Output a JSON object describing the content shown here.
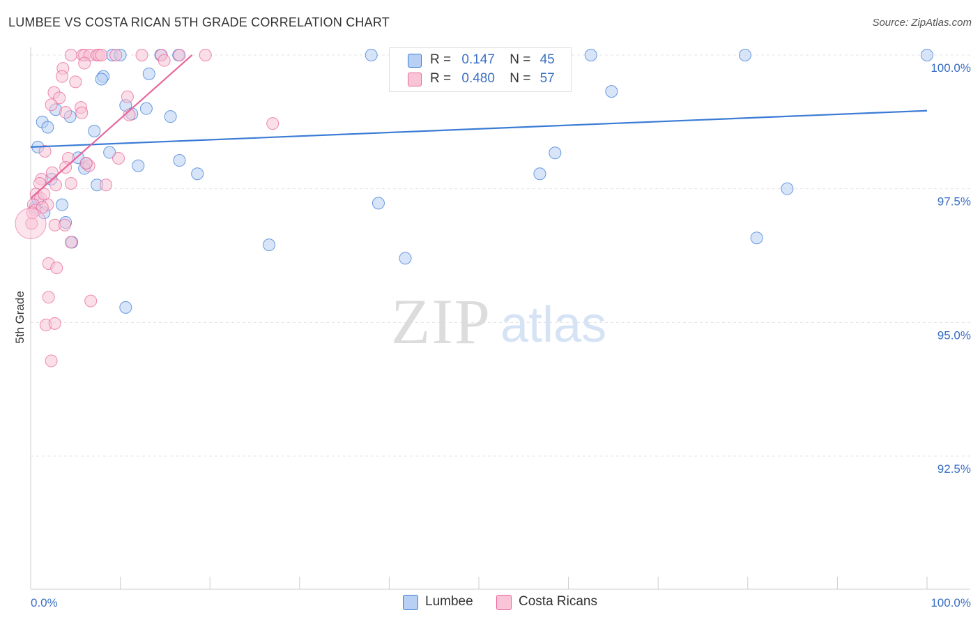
{
  "header": {
    "title": "LUMBEE VS COSTA RICAN 5TH GRADE CORRELATION CHART",
    "source": "Source: ZipAtlas.com"
  },
  "legend": {
    "row1": {
      "r_label": "R =",
      "r_value": "0.147",
      "n_label": "N =",
      "n_value": "45"
    },
    "row2": {
      "r_label": "R =",
      "r_value": "0.480",
      "n_label": "N =",
      "n_value": "57"
    }
  },
  "bottom_legend": {
    "lumbee": "Lumbee",
    "costa": "Costa Ricans"
  },
  "watermark": {
    "zip": "ZIP",
    "atlas": "atlas"
  },
  "colors": {
    "blue": "#3a7bd5",
    "blue_fill": "#b8d0f4",
    "pink": "#e8669a",
    "pink_fill": "#f8c4d6",
    "axis_label": "#3a6fc4",
    "grid": "#e4e4e4"
  },
  "chart_data": {
    "type": "scatter",
    "title": "LUMBEE VS COSTA RICAN 5TH GRADE CORRELATION CHART",
    "xlabel": "",
    "ylabel": "5th Grade",
    "xlim": [
      0,
      100
    ],
    "ylim": [
      90.2,
      100.35
    ],
    "x_tick_labels": [
      "0.0%",
      "100.0%"
    ],
    "y_ticks": [
      92.5,
      95.0,
      97.5,
      100.0
    ],
    "y_tick_labels": [
      "92.5%",
      "95.0%",
      "97.5%",
      "100.0%"
    ],
    "series": [
      {
        "name": "Lumbee",
        "color": "#3a7bd5",
        "r": 0.147,
        "n": 45,
        "trend": [
          [
            0,
            98.28
          ],
          [
            100,
            98.96
          ]
        ],
        "points": [
          [
            9.1,
            100.0
          ],
          [
            10.0,
            100.0
          ],
          [
            14.5,
            100.0
          ],
          [
            16.5,
            100.0
          ],
          [
            38.0,
            100.0
          ],
          [
            62.5,
            100.0
          ],
          [
            79.7,
            100.0
          ],
          [
            100.0,
            100.0
          ],
          [
            8.1,
            99.6
          ],
          [
            7.9,
            99.55
          ],
          [
            13.2,
            99.65
          ],
          [
            2.8,
            98.98
          ],
          [
            10.6,
            99.06
          ],
          [
            12.9,
            99.0
          ],
          [
            11.3,
            98.9
          ],
          [
            4.4,
            98.85
          ],
          [
            1.3,
            98.75
          ],
          [
            1.9,
            98.65
          ],
          [
            7.1,
            98.58
          ],
          [
            15.6,
            98.85
          ],
          [
            64.8,
            99.32
          ],
          [
            0.8,
            98.28
          ],
          [
            8.8,
            98.18
          ],
          [
            5.3,
            98.08
          ],
          [
            6.2,
            97.97
          ],
          [
            6.0,
            97.88
          ],
          [
            12.0,
            97.93
          ],
          [
            16.6,
            98.03
          ],
          [
            18.6,
            97.78
          ],
          [
            56.8,
            97.78
          ],
          [
            58.5,
            98.17
          ],
          [
            2.3,
            97.68
          ],
          [
            7.4,
            97.57
          ],
          [
            84.4,
            97.5
          ],
          [
            3.5,
            97.2
          ],
          [
            38.8,
            97.23
          ],
          [
            3.9,
            96.87
          ],
          [
            4.6,
            96.5
          ],
          [
            26.6,
            96.45
          ],
          [
            81.0,
            96.58
          ],
          [
            41.8,
            96.2
          ],
          [
            10.6,
            95.28
          ],
          [
            0.5,
            97.15
          ],
          [
            0.8,
            97.3
          ],
          [
            1.5,
            97.05
          ]
        ]
      },
      {
        "name": "Costa Ricans",
        "color": "#e8669a",
        "r": 0.48,
        "n": 57,
        "trend": [
          [
            0,
            97.32
          ],
          [
            18.0,
            100.0
          ]
        ],
        "points": [
          [
            4.5,
            100.0
          ],
          [
            5.8,
            100.0
          ],
          [
            6.0,
            100.0
          ],
          [
            6.6,
            100.0
          ],
          [
            7.4,
            100.0
          ],
          [
            7.6,
            100.0
          ],
          [
            7.9,
            100.0
          ],
          [
            9.5,
            100.0
          ],
          [
            12.4,
            100.0
          ],
          [
            14.6,
            100.0
          ],
          [
            16.6,
            100.0
          ],
          [
            19.5,
            100.0
          ],
          [
            6.0,
            99.85
          ],
          [
            14.9,
            99.9
          ],
          [
            3.6,
            99.75
          ],
          [
            3.5,
            99.6
          ],
          [
            5.0,
            99.5
          ],
          [
            2.6,
            99.3
          ],
          [
            3.2,
            99.2
          ],
          [
            10.8,
            99.22
          ],
          [
            2.3,
            99.07
          ],
          [
            5.6,
            99.02
          ],
          [
            3.9,
            98.93
          ],
          [
            5.7,
            98.92
          ],
          [
            11.0,
            98.88
          ],
          [
            27.0,
            98.72
          ],
          [
            1.6,
            98.2
          ],
          [
            4.2,
            98.07
          ],
          [
            9.8,
            98.07
          ],
          [
            3.9,
            97.9
          ],
          [
            6.5,
            97.93
          ],
          [
            6.2,
            97.98
          ],
          [
            2.4,
            97.8
          ],
          [
            1.2,
            97.68
          ],
          [
            2.8,
            97.57
          ],
          [
            4.5,
            97.6
          ],
          [
            8.4,
            97.57
          ],
          [
            1.0,
            97.6
          ],
          [
            0.6,
            97.4
          ],
          [
            1.1,
            97.32
          ],
          [
            1.9,
            97.2
          ],
          [
            0.3,
            97.2
          ],
          [
            0.5,
            97.1
          ],
          [
            1.3,
            97.15
          ],
          [
            2.7,
            96.82
          ],
          [
            3.8,
            96.82
          ],
          [
            0.1,
            96.85
          ],
          [
            4.5,
            96.5
          ],
          [
            2.0,
            96.1
          ],
          [
            2.9,
            96.02
          ],
          [
            2.0,
            95.47
          ],
          [
            6.7,
            95.4
          ],
          [
            1.7,
            94.95
          ],
          [
            2.7,
            94.98
          ],
          [
            2.3,
            94.28
          ],
          [
            0.2,
            97.05
          ],
          [
            1.5,
            97.4
          ]
        ]
      }
    ]
  }
}
